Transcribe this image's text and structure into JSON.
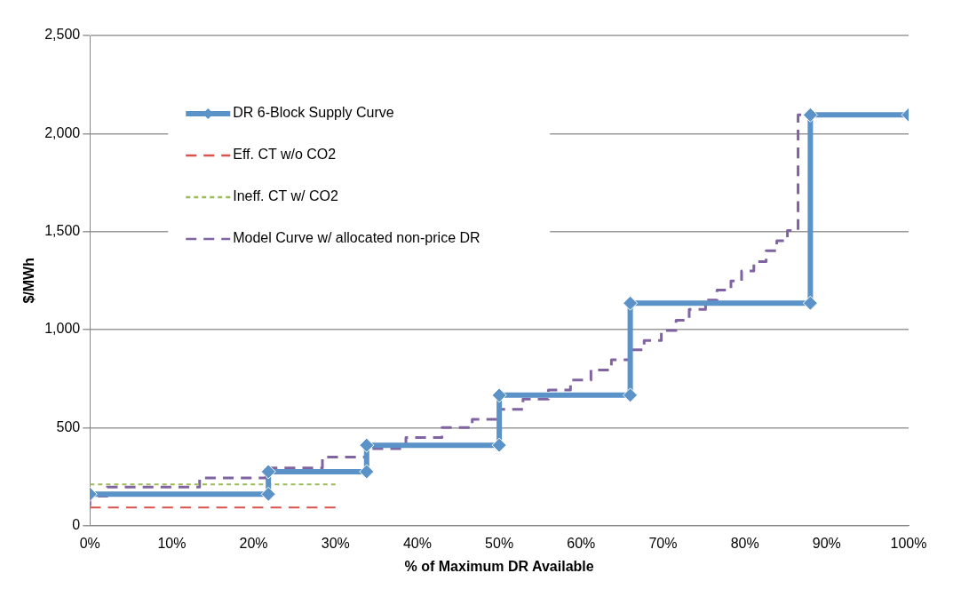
{
  "chart_data": {
    "type": "line",
    "xlabel": "% of Maximum DR Available",
    "ylabel": "$/MWh",
    "xlim": [
      0,
      100
    ],
    "xticks": [
      {
        "value": 0,
        "label": "0%"
      },
      {
        "value": 10,
        "label": "10%"
      },
      {
        "value": 20,
        "label": "20%"
      },
      {
        "value": 30,
        "label": "30%"
      },
      {
        "value": 40,
        "label": "40%"
      },
      {
        "value": 50,
        "label": "50%"
      },
      {
        "value": 60,
        "label": "60%"
      },
      {
        "value": 70,
        "label": "70%"
      },
      {
        "value": 80,
        "label": "80%"
      },
      {
        "value": 90,
        "label": "90%"
      },
      {
        "value": 100,
        "label": "100%"
      }
    ],
    "ylim": [
      0,
      2500
    ],
    "yticks": [
      {
        "value": 0,
        "label": "0"
      },
      {
        "value": 500,
        "label": "500"
      },
      {
        "value": 1000,
        "label": "1,000"
      },
      {
        "value": 1500,
        "label": "1,500"
      },
      {
        "value": 2000,
        "label": "2,000"
      },
      {
        "value": 2500,
        "label": "2,500"
      }
    ],
    "grid": "y",
    "legend": "top left",
    "series": [
      {
        "name": "DR 6-Block Supply Curve",
        "type": "line",
        "color": "#5b93c9",
        "marker": "diamond",
        "line_style": "solid",
        "x": [
          0,
          21.8,
          21.8,
          33.8,
          33.8,
          50,
          50,
          66,
          66,
          88,
          88,
          100
        ],
        "values": [
          160,
          160,
          275,
          275,
          410,
          410,
          665,
          665,
          1135,
          1135,
          2095,
          2095
        ]
      },
      {
        "name": "Eff. CT w/o CO2",
        "type": "line",
        "color": "#d9534f",
        "marker": "none",
        "line_style": "dashed",
        "x": [
          0,
          30
        ],
        "values": [
          92,
          92
        ]
      },
      {
        "name": "Ineff. CT w/ CO2",
        "type": "line",
        "color": "#9bbb59",
        "marker": "none",
        "line_style": "dotted",
        "x": [
          0,
          30
        ],
        "values": [
          210,
          210
        ]
      },
      {
        "name": "Model Curve w/ allocated non-price DR",
        "type": "step",
        "color": "#8064a2",
        "marker": "none",
        "line_style": "dashed",
        "x": [
          0,
          2.1,
          13.4,
          21.5,
          28.4,
          33.7,
          38.6,
          43,
          46.7,
          50.1,
          52.9,
          56,
          58.7,
          61.2,
          63.7,
          65.9,
          67.7,
          69.8,
          71.6,
          73.2,
          75.2,
          76.6,
          78.3,
          79.6,
          81.1,
          82.6,
          83.9,
          85.2,
          86.5,
          88,
          100
        ],
        "values": [
          100,
          150,
          196,
          243,
          294,
          350,
          393,
          449,
          500,
          542,
          593,
          645,
          692,
          743,
          794,
          846,
          897,
          944,
          995,
          1047,
          1103,
          1150,
          1201,
          1248,
          1299,
          1346,
          1402,
          1453,
          1505,
          2095,
          2095
        ]
      }
    ]
  }
}
